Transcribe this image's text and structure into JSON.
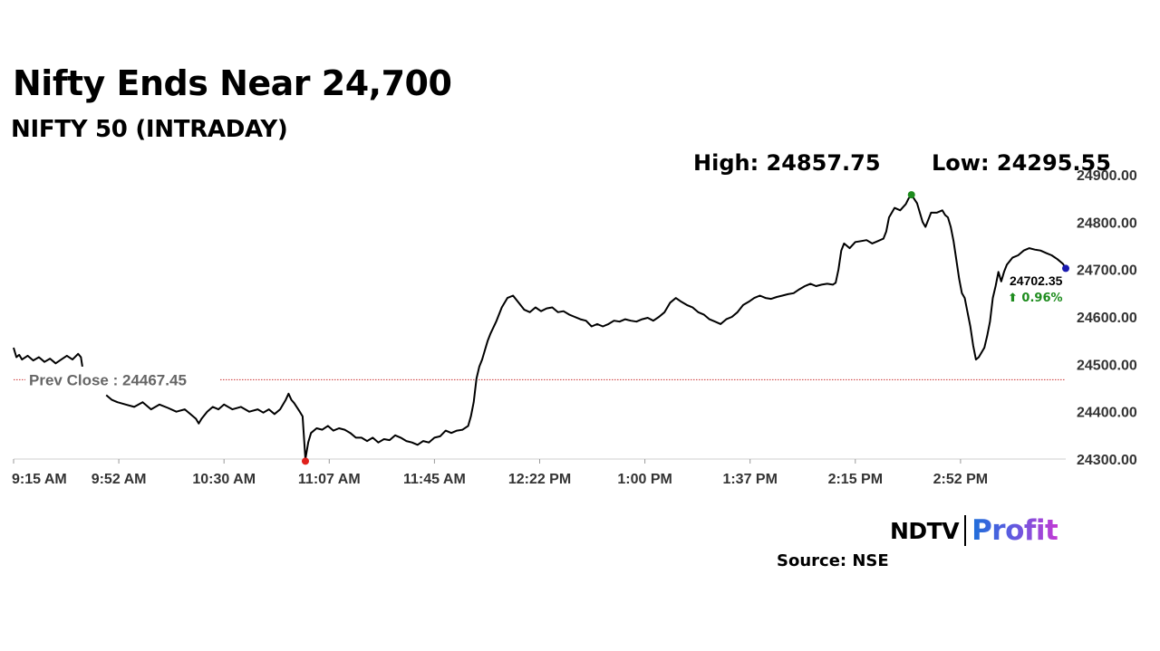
{
  "header": {
    "title": "Nifty Ends Near 24,700",
    "subtitle": "NIFTY 50 (INTRADAY)"
  },
  "stats": {
    "high_label": "High: 24857.75",
    "low_label": "Low: 24295.55"
  },
  "chart_data": {
    "type": "line",
    "title": "Nifty Ends Near 24,700",
    "subtitle": "NIFTY 50 (INTRADAY)",
    "xlabel": "",
    "ylabel": "",
    "x_tick_labels": [
      "9:15 AM",
      "9:52 AM",
      "10:30 AM",
      "11:07 AM",
      "11:45 AM",
      "12:22 PM",
      "1:00 PM",
      "1:37 PM",
      "2:15 PM",
      "2:52 PM"
    ],
    "y_tick_labels": [
      "24300.00",
      "24400.00",
      "24500.00",
      "24600.00",
      "24700.00",
      "24800.00",
      "24900.00"
    ],
    "y_ticks": [
      24300,
      24400,
      24500,
      24600,
      24700,
      24800,
      24900
    ],
    "ylim": [
      24300,
      24900
    ],
    "xlim_minutes": [
      0,
      375
    ],
    "grid": false,
    "line_color": "#000000",
    "prev_close": {
      "value": 24467.45,
      "label": "Prev Close : 24467.45",
      "color": "#cc3333"
    },
    "high": {
      "t": 320,
      "value": 24857.75,
      "color": "#1e8c1e"
    },
    "low": {
      "t": 104,
      "value": 24295.55,
      "color": "#e0201c"
    },
    "last": {
      "t": 375,
      "value": 24702.35,
      "label": "24702.35",
      "change_label": "⬆ 0.96%",
      "color": "#1a1ab0",
      "change_color": "#1e8c1e"
    },
    "series": [
      {
        "segments": [
          [
            [
              0,
              24535
            ],
            [
              1,
              24515
            ],
            [
              2,
              24520
            ],
            [
              3,
              24510
            ],
            [
              5,
              24518
            ],
            [
              7,
              24508
            ],
            [
              9,
              24515
            ],
            [
              11,
              24505
            ],
            [
              13,
              24512
            ],
            [
              15,
              24502
            ],
            [
              17,
              24510
            ],
            [
              19,
              24518
            ],
            [
              21,
              24510
            ],
            [
              23,
              24522
            ],
            [
              24,
              24515
            ],
            [
              24.5,
              24495
            ]
          ],
          [
            [
              33,
              24435
            ],
            [
              35,
              24425
            ],
            [
              37,
              24420
            ],
            [
              40,
              24415
            ],
            [
              43,
              24410
            ],
            [
              46,
              24420
            ],
            [
              49,
              24405
            ],
            [
              52,
              24415
            ],
            [
              55,
              24408
            ],
            [
              58,
              24400
            ],
            [
              61,
              24405
            ],
            [
              63,
              24395
            ],
            [
              65,
              24385
            ],
            [
              66,
              24375
            ],
            [
              67,
              24385
            ],
            [
              69,
              24400
            ],
            [
              71,
              24410
            ],
            [
              73,
              24405
            ],
            [
              75,
              24415
            ],
            [
              78,
              24405
            ],
            [
              81,
              24410
            ],
            [
              84,
              24400
            ],
            [
              87,
              24405
            ],
            [
              89,
              24398
            ],
            [
              91,
              24405
            ],
            [
              93,
              24395
            ],
            [
              95,
              24405
            ],
            [
              97,
              24425
            ],
            [
              98,
              24438
            ],
            [
              99,
              24425
            ],
            [
              100,
              24418
            ],
            [
              102,
              24400
            ],
            [
              103,
              24390
            ],
            [
              104,
              24300
            ],
            [
              105,
              24335
            ],
            [
              106,
              24355
            ],
            [
              108,
              24365
            ],
            [
              110,
              24362
            ],
            [
              112,
              24370
            ],
            [
              114,
              24360
            ],
            [
              116,
              24365
            ],
            [
              118,
              24362
            ],
            [
              120,
              24355
            ],
            [
              122,
              24345
            ],
            [
              124,
              24345
            ],
            [
              126,
              24338
            ],
            [
              128,
              24345
            ],
            [
              130,
              24335
            ],
            [
              132,
              24342
            ],
            [
              134,
              24340
            ],
            [
              136,
              24350
            ],
            [
              138,
              24345
            ],
            [
              140,
              24338
            ],
            [
              142,
              24335
            ],
            [
              144,
              24330
            ],
            [
              146,
              24338
            ],
            [
              148,
              24335
            ],
            [
              150,
              24345
            ],
            [
              152,
              24348
            ],
            [
              154,
              24360
            ],
            [
              156,
              24355
            ],
            [
              158,
              24360
            ],
            [
              160,
              24362
            ],
            [
              162,
              24370
            ],
            [
              163,
              24390
            ],
            [
              164,
              24420
            ],
            [
              165,
              24470
            ],
            [
              166,
              24495
            ],
            [
              167,
              24510
            ],
            [
              168,
              24530
            ],
            [
              169,
              24550
            ],
            [
              170,
              24565
            ],
            [
              172,
              24590
            ],
            [
              174,
              24620
            ],
            [
              176,
              24640
            ],
            [
              178,
              24645
            ],
            [
              180,
              24630
            ],
            [
              182,
              24615
            ],
            [
              184,
              24610
            ],
            [
              186,
              24620
            ],
            [
              188,
              24612
            ],
            [
              190,
              24618
            ],
            [
              192,
              24620
            ],
            [
              194,
              24610
            ],
            [
              196,
              24612
            ],
            [
              198,
              24605
            ],
            [
              200,
              24600
            ],
            [
              202,
              24595
            ],
            [
              204,
              24592
            ],
            [
              206,
              24580
            ],
            [
              208,
              24585
            ],
            [
              210,
              24580
            ],
            [
              212,
              24585
            ],
            [
              214,
              24592
            ],
            [
              216,
              24590
            ],
            [
              218,
              24595
            ],
            [
              220,
              24592
            ],
            [
              222,
              24590
            ],
            [
              224,
              24595
            ],
            [
              226,
              24598
            ],
            [
              228,
              24592
            ],
            [
              230,
              24600
            ],
            [
              232,
              24610
            ],
            [
              234,
              24630
            ],
            [
              236,
              24640
            ],
            [
              238,
              24632
            ],
            [
              240,
              24625
            ],
            [
              242,
              24620
            ],
            [
              244,
              24610
            ],
            [
              246,
              24605
            ],
            [
              248,
              24595
            ],
            [
              250,
              24590
            ],
            [
              252,
              24585
            ],
            [
              254,
              24595
            ],
            [
              256,
              24600
            ],
            [
              258,
              24610
            ],
            [
              260,
              24625
            ],
            [
              262,
              24632
            ],
            [
              264,
              24640
            ],
            [
              266,
              24645
            ],
            [
              268,
              24640
            ],
            [
              270,
              24638
            ],
            [
              272,
              24642
            ],
            [
              274,
              24645
            ],
            [
              276,
              24648
            ],
            [
              278,
              24650
            ],
            [
              280,
              24658
            ],
            [
              282,
              24665
            ],
            [
              284,
              24670
            ],
            [
              286,
              24665
            ],
            [
              288,
              24668
            ],
            [
              290,
              24670
            ],
            [
              292,
              24668
            ],
            [
              293,
              24672
            ],
            [
              294,
              24700
            ],
            [
              295,
              24740
            ],
            [
              296,
              24755
            ],
            [
              298,
              24745
            ],
            [
              300,
              24758
            ],
            [
              302,
              24760
            ],
            [
              304,
              24762
            ],
            [
              306,
              24755
            ],
            [
              308,
              24760
            ],
            [
              310,
              24765
            ],
            [
              311,
              24780
            ],
            [
              312,
              24810
            ],
            [
              314,
              24830
            ],
            [
              316,
              24825
            ],
            [
              318,
              24838
            ],
            [
              319,
              24850
            ],
            [
              320,
              24857.75
            ],
            [
              322,
              24840
            ],
            [
              323,
              24820
            ],
            [
              324,
              24800
            ],
            [
              325,
              24790
            ],
            [
              326,
              24805
            ],
            [
              327,
              24820
            ],
            [
              329,
              24820
            ],
            [
              331,
              24825
            ],
            [
              332,
              24815
            ],
            [
              333,
              24810
            ],
            [
              334,
              24790
            ],
            [
              335,
              24760
            ],
            [
              336,
              24720
            ],
            [
              337,
              24680
            ],
            [
              338,
              24650
            ],
            [
              339,
              24640
            ],
            [
              340,
              24610
            ],
            [
              341,
              24580
            ],
            [
              342,
              24540
            ],
            [
              343,
              24510
            ],
            [
              344,
              24515
            ],
            [
              345,
              24525
            ],
            [
              346,
              24535
            ],
            [
              347,
              24560
            ],
            [
              348,
              24590
            ],
            [
              349,
              24640
            ],
            [
              350,
              24665
            ],
            [
              351,
              24695
            ],
            [
              352,
              24675
            ],
            [
              353,
              24695
            ],
            [
              354,
              24710
            ],
            [
              356,
              24725
            ],
            [
              358,
              24730
            ],
            [
              360,
              24740
            ],
            [
              362,
              24745
            ],
            [
              364,
              24742
            ],
            [
              366,
              24740
            ],
            [
              368,
              24735
            ],
            [
              370,
              24730
            ],
            [
              372,
              24722
            ],
            [
              374,
              24712
            ],
            [
              375,
              24702.35
            ]
          ]
        ]
      }
    ]
  },
  "brand": {
    "ndtv": "NDTV",
    "profit": "Profit"
  },
  "source_label": "Source: NSE"
}
